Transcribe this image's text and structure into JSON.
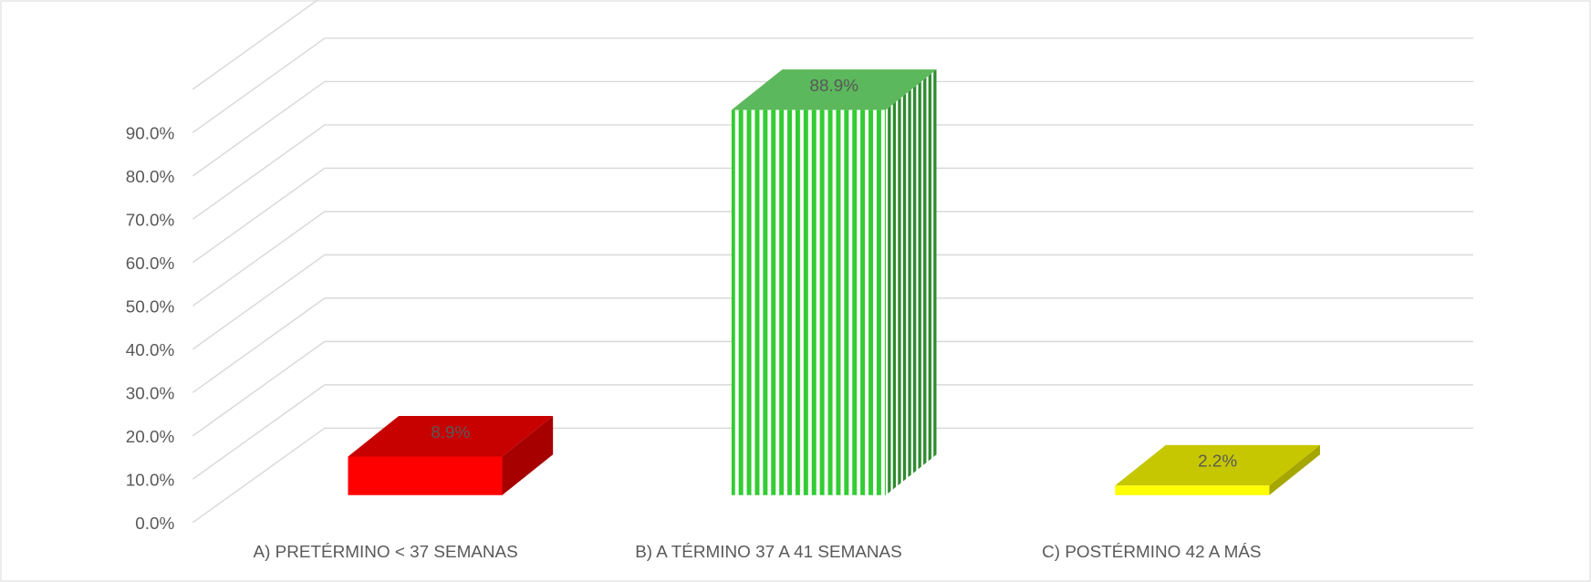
{
  "chart_data": {
    "type": "bar3d",
    "categories": [
      "A) PRETÉRMINO < 37 SEMANAS",
      "B) A TÉRMINO 37 A 41 SEMANAS",
      "C) POSTÉRMINO 42 A MÁS"
    ],
    "values": [
      8.9,
      88.9,
      2.2
    ],
    "value_labels": [
      "8.9%",
      "88.9%",
      "2.2%"
    ],
    "colors": [
      "#ff0000",
      "#33cc33",
      "#ffff00"
    ],
    "ylim": [
      0,
      100
    ],
    "yticks": [
      {
        "value": 0,
        "label": "0.0%"
      },
      {
        "value": 10,
        "label": "10.0%"
      },
      {
        "value": 20,
        "label": "20.0%"
      },
      {
        "value": 30,
        "label": "30.0%"
      },
      {
        "value": 40,
        "label": "40.0%"
      },
      {
        "value": 50,
        "label": "50.0%"
      },
      {
        "value": 60,
        "label": "60.0%"
      },
      {
        "value": 70,
        "label": "70.0%"
      },
      {
        "value": 80,
        "label": "80.0%"
      },
      {
        "value": 90,
        "label": "90.0%"
      }
    ],
    "grid": true
  }
}
